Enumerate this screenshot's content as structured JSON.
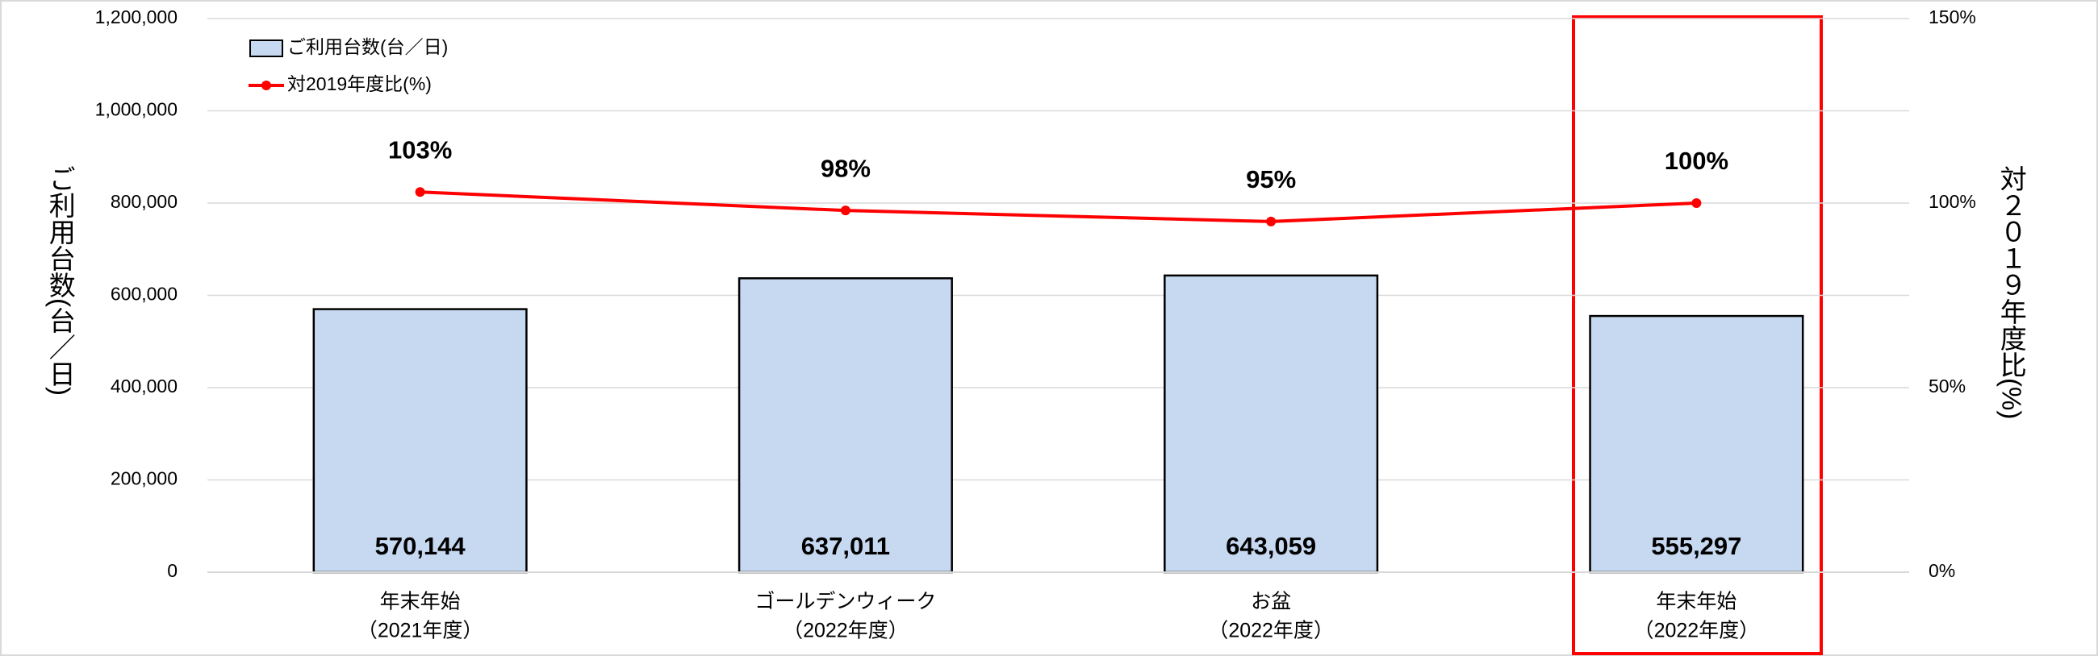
{
  "chart_data": {
    "type": "bar-line",
    "categories": [
      [
        "年末年始",
        "（2021年度）"
      ],
      [
        "ゴールデンウィーク",
        "（2022年度）"
      ],
      [
        "お盆",
        "（2022年度）"
      ],
      [
        "年末年始",
        "（2022年度）"
      ]
    ],
    "y_label": "ご利用台数(台／日)",
    "y2_label": "対２０１９年度比(%)",
    "series": [
      {
        "name": "ご利用台数(台／日)",
        "type": "bar",
        "color": "#c6d9f0",
        "values": [
          570144,
          637011,
          643059,
          555297
        ],
        "value_labels": [
          "570,144",
          "637,011",
          "643,059",
          "555,297"
        ]
      },
      {
        "name": "対2019年度比(%)",
        "type": "line",
        "axis": "y2",
        "color": "#ff0000",
        "values": [
          103,
          98,
          95,
          100
        ],
        "value_labels": [
          "103%",
          "98%",
          "95%",
          "100%"
        ]
      }
    ],
    "ylim": [
      0,
      1200000
    ],
    "yticks": [
      {
        "value": 0,
        "label": "0"
      },
      {
        "value": 200000,
        "label": "200,000"
      },
      {
        "value": 400000,
        "label": "400,000"
      },
      {
        "value": 600000,
        "label": "600,000"
      },
      {
        "value": 800000,
        "label": "800,000"
      },
      {
        "value": 1000000,
        "label": "1,000,000"
      },
      {
        "value": 1200000,
        "label": "1,200,000"
      }
    ],
    "y2lim": [
      0,
      150
    ],
    "y2ticks": [
      {
        "value": 0,
        "label": "0%"
      },
      {
        "value": 50,
        "label": "50%"
      },
      {
        "value": 100,
        "label": "100%"
      },
      {
        "value": 150,
        "label": "150%"
      }
    ],
    "grid": true,
    "legend": "upper left"
  }
}
